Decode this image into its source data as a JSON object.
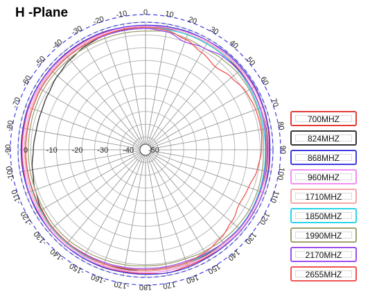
{
  "chart_data": {
    "type": "polar-line",
    "title": "H -Plane",
    "angle_ticks": [
      "0",
      "10",
      "20",
      "30",
      "40",
      "50",
      "60",
      "70",
      "80",
      "90",
      "100",
      "110",
      "120",
      "130",
      "140",
      "150",
      "160",
      "170",
      "180",
      "-170",
      "-160",
      "-150",
      "-140",
      "-130",
      "-120",
      "-110",
      "-100",
      "-90",
      "-80",
      "-70",
      "-60",
      "-50",
      "-40",
      "-30",
      "-20",
      "-10"
    ],
    "radial_ticks": [
      "0",
      "-10",
      "-20",
      "-30",
      "-40",
      "-50"
    ],
    "radial_range": [
      -50,
      5
    ],
    "reference_circles_db": [
      0,
      3
    ],
    "grid": true,
    "legend_position": "right",
    "angles": [
      0,
      10,
      20,
      30,
      40,
      50,
      60,
      70,
      80,
      90,
      100,
      110,
      120,
      130,
      140,
      150,
      160,
      170,
      180,
      -170,
      -160,
      -150,
      -140,
      -130,
      -120,
      -110,
      -100,
      -90,
      -80,
      -70,
      -60,
      -50,
      -40,
      -30,
      -20,
      -10
    ],
    "series": [
      {
        "name": "700MHZ",
        "color": "#e53935",
        "values": [
          -1.5,
          -1.0,
          -1.0,
          -0.8,
          -0.5,
          -0.5,
          -0.8,
          -1.0,
          -1.2,
          -1.5,
          -1.2,
          -1.0,
          -1.0,
          -1.0,
          -1.2,
          -1.5,
          -1.5,
          -1.0,
          -1.5,
          -1.5,
          -1.2,
          -1.0,
          -1.0,
          -1.0,
          -1.2,
          -1.5,
          -1.5,
          -1.5,
          -1.5,
          -1.2,
          -1.0,
          -1.0,
          -1.2,
          -1.2,
          -1.2,
          -1.5
        ]
      },
      {
        "name": "824MHZ",
        "color": "#333333",
        "values": [
          -2.0,
          -1.8,
          -2.0,
          -2.0,
          -2.0,
          -1.8,
          -1.8,
          -2.0,
          -2.0,
          -2.2,
          -2.0,
          -2.0,
          -2.0,
          -2.2,
          -2.5,
          -2.5,
          -2.5,
          -2.5,
          -2.5,
          -2.5,
          -2.5,
          -2.5,
          -2.5,
          -2.5,
          -3.0,
          -4.0,
          -5.0,
          -6.0,
          -6.5,
          -6.5,
          -6.0,
          -5.0,
          -4.0,
          -3.0,
          -2.5,
          -2.2
        ]
      },
      {
        "name": "868MHZ",
        "color": "#3b3be0",
        "values": [
          -1.2,
          -1.0,
          -0.8,
          -0.8,
          -0.5,
          -0.5,
          -0.5,
          -0.8,
          -1.0,
          -1.2,
          -1.0,
          -1.0,
          -1.0,
          -1.0,
          -1.2,
          -1.2,
          -1.0,
          -1.0,
          -1.2,
          -1.2,
          -1.0,
          -1.0,
          -1.0,
          -1.0,
          -1.0,
          -1.2,
          -1.2,
          -1.2,
          -1.2,
          -1.0,
          -1.0,
          -1.0,
          -1.0,
          -1.0,
          -1.0,
          -1.2
        ]
      },
      {
        "name": "960MHZ",
        "color": "#f08ef5",
        "values": [
          -1.5,
          -1.5,
          -1.2,
          -1.0,
          -1.0,
          -1.0,
          -1.0,
          -1.2,
          -1.5,
          -1.8,
          -1.5,
          -1.2,
          -1.2,
          -1.2,
          -1.5,
          -1.8,
          -2.0,
          -1.8,
          -1.8,
          -1.8,
          -1.5,
          -1.5,
          -1.2,
          -1.2,
          -1.5,
          -1.5,
          -1.8,
          -1.8,
          -1.8,
          -1.5,
          -1.5,
          -1.5,
          -1.5,
          -1.5,
          -1.5,
          -1.5
        ]
      },
      {
        "name": "1710MHZ",
        "color": "#f4a6a6",
        "values": [
          -2.0,
          -2.0,
          -1.8,
          -1.5,
          -1.5,
          -1.5,
          -1.8,
          -2.0,
          -2.2,
          -2.5,
          -2.2,
          -2.0,
          -1.8,
          -1.8,
          -2.0,
          -2.2,
          -2.5,
          -2.5,
          -2.5,
          -2.2,
          -2.0,
          -2.0,
          -1.8,
          -1.8,
          -2.0,
          -2.2,
          -2.5,
          -2.5,
          -2.5,
          -2.2,
          -2.0,
          -2.0,
          -2.0,
          -2.0,
          -2.0,
          -2.0
        ]
      },
      {
        "name": "1850MHZ",
        "color": "#28d4e6",
        "values": [
          -2.5,
          -2.2,
          -2.0,
          -2.0,
          -2.0,
          -2.2,
          -2.5,
          -2.8,
          -3.0,
          -3.0,
          -2.8,
          -2.5,
          -2.2,
          -2.2,
          -2.5,
          -2.8,
          -3.0,
          -3.0,
          -3.0,
          -2.8,
          -2.5,
          -2.2,
          -2.2,
          -2.2,
          -2.5,
          -2.8,
          -3.0,
          -3.0,
          -3.0,
          -2.8,
          -2.5,
          -2.5,
          -2.5,
          -2.5,
          -2.5,
          -2.5
        ]
      },
      {
        "name": "1990MHZ",
        "color": "#a0a070",
        "values": [
          -3.5,
          -3.0,
          -3.5,
          -4.0,
          -3.5,
          -3.0,
          -3.0,
          -3.2,
          -3.5,
          -3.8,
          -3.5,
          -3.2,
          -3.0,
          -3.2,
          -3.5,
          -4.0,
          -4.5,
          -4.5,
          -4.5,
          -4.2,
          -4.0,
          -3.8,
          -3.5,
          -3.5,
          -3.8,
          -4.0,
          -4.0,
          -4.0,
          -4.0,
          -3.8,
          -3.5,
          -3.5,
          -3.5,
          -3.5,
          -3.5,
          -3.5
        ]
      },
      {
        "name": "2170MHZ",
        "color": "#9c4df0",
        "values": [
          -2.5,
          -3.0,
          -5.0,
          -4.0,
          -2.5,
          -2.0,
          -2.0,
          -2.2,
          -2.5,
          -2.8,
          -2.5,
          -2.2,
          -2.0,
          -2.0,
          -2.5,
          -3.0,
          -3.5,
          -3.5,
          -3.5,
          -3.2,
          -3.0,
          -2.8,
          -2.5,
          -2.5,
          -2.8,
          -3.0,
          -3.0,
          -3.0,
          -3.0,
          -2.8,
          -2.5,
          -2.5,
          -2.5,
          -2.5,
          -2.5,
          -2.5
        ]
      },
      {
        "name": "2655MHZ",
        "color": "#ef5350",
        "values": [
          -2.0,
          -2.5,
          -4.0,
          -6.0,
          -7.5,
          -6.0,
          -4.5,
          -4.0,
          -4.0,
          -4.5,
          -5.5,
          -7.0,
          -7.5,
          -6.0,
          -4.5,
          -3.5,
          -3.0,
          -3.0,
          -3.0,
          -2.8,
          -2.5,
          -2.5,
          -2.5,
          -2.5,
          -2.8,
          -3.0,
          -3.0,
          -3.0,
          -3.0,
          -2.8,
          -2.5,
          -2.5,
          -2.5,
          -2.5,
          -2.2,
          -2.0
        ]
      }
    ]
  }
}
